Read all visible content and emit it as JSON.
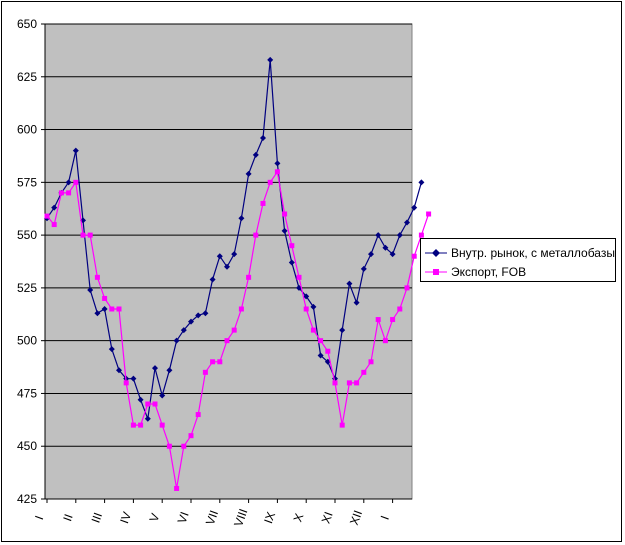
{
  "chart_data": {
    "type": "line",
    "title": "",
    "xlabel": "",
    "ylabel": "",
    "ylim": [
      425,
      650
    ],
    "yticks": [
      425,
      450,
      475,
      500,
      525,
      550,
      575,
      600,
      625,
      650
    ],
    "grid": "horizontal",
    "legend_position": "right",
    "plot_background": "#C0C0C0",
    "month_labels": [
      "I",
      "II",
      "III",
      "IV",
      "V",
      "VI",
      "VII",
      "VIII",
      "IX",
      "X",
      "XI",
      "XII",
      "I"
    ],
    "points_per_month": 4,
    "series": [
      {
        "name": "Внутр. рынок, с металлобазы",
        "color": "#000080",
        "marker": "diamond",
        "values": [
          558,
          563,
          570,
          575,
          590,
          557,
          524,
          513,
          515,
          496,
          486,
          482,
          482,
          472,
          463,
          487,
          474,
          486,
          500,
          505,
          509,
          512,
          513,
          529,
          540,
          535,
          541,
          558,
          579,
          588,
          596,
          633,
          584,
          552,
          537,
          525,
          521,
          516,
          493,
          490,
          482,
          505,
          527,
          518,
          534,
          541,
          550,
          544,
          541,
          550,
          556,
          563,
          575
        ]
      },
      {
        "name": "Экспорт, FOB",
        "color": "#FF00FF",
        "marker": "square",
        "values": [
          559,
          555,
          570,
          570,
          575,
          550,
          550,
          530,
          520,
          515,
          515,
          480,
          460,
          460,
          470,
          470,
          460,
          450,
          430,
          450,
          455,
          465,
          485,
          490,
          490,
          500,
          505,
          515,
          530,
          550,
          565,
          575,
          580,
          560,
          545,
          530,
          515,
          505,
          500,
          495,
          480,
          460,
          480,
          480,
          485,
          490,
          510,
          500,
          510,
          515,
          525,
          540,
          550,
          560
        ]
      }
    ]
  }
}
